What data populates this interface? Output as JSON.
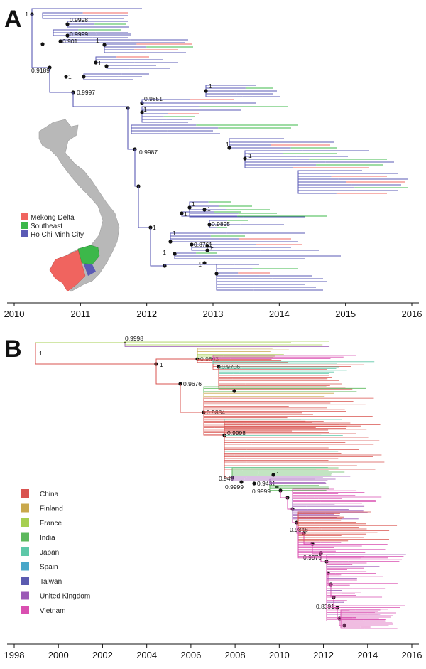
{
  "panels": [
    {
      "letter": "A",
      "axis": {
        "ticks": [
          "2010",
          "2011",
          "2012",
          "2013",
          "2014",
          "2015",
          "2016"
        ]
      },
      "support_values": [
        "1",
        "0.9998",
        "0.9999",
        "0.901",
        "1",
        "0.9189",
        "1",
        "1",
        "0.9997",
        "0.9851",
        "1",
        "1",
        "0.9987",
        "1",
        "1",
        "1",
        "1",
        "1",
        "0.9895",
        "1",
        "1",
        "0.8761",
        "1",
        "1",
        "1",
        "1"
      ],
      "legend": [
        {
          "label": "Mekong Delta",
          "color": "#f0645f"
        },
        {
          "label": "Southeast",
          "color": "#3cb84a"
        },
        {
          "label": "Ho Chi Minh City",
          "color": "#5a5ab5"
        }
      ],
      "map_colors": {
        "land": "#b8b8b8"
      }
    },
    {
      "letter": "B",
      "axis": {
        "ticks": [
          "1998",
          "2000",
          "2002",
          "2004",
          "2006",
          "2008",
          "2010",
          "2012",
          "2014",
          "2016"
        ]
      },
      "support_values": [
        "0.9998",
        "1",
        "1",
        "0.9803",
        "0.9706",
        "0.9676",
        "0.9884",
        "0.9998",
        "1",
        "0.949",
        "0.9431",
        "0.9999",
        "0.9999",
        "0.9846",
        "0.9979",
        "0.8391"
      ],
      "legend": [
        {
          "label": "China",
          "color": "#d9534f"
        },
        {
          "label": "Finland",
          "color": "#c9a84c"
        },
        {
          "label": "France",
          "color": "#a6cf50"
        },
        {
          "label": "India",
          "color": "#5cb85c"
        },
        {
          "label": "Japan",
          "color": "#5dc8a8"
        },
        {
          "label": "Spain",
          "color": "#48a7c9"
        },
        {
          "label": "Taiwan",
          "color": "#5b5bb0"
        },
        {
          "label": "United Kingdom",
          "color": "#9b59b6"
        },
        {
          "label": "Vietnam",
          "color": "#d94fb0"
        }
      ]
    }
  ]
}
